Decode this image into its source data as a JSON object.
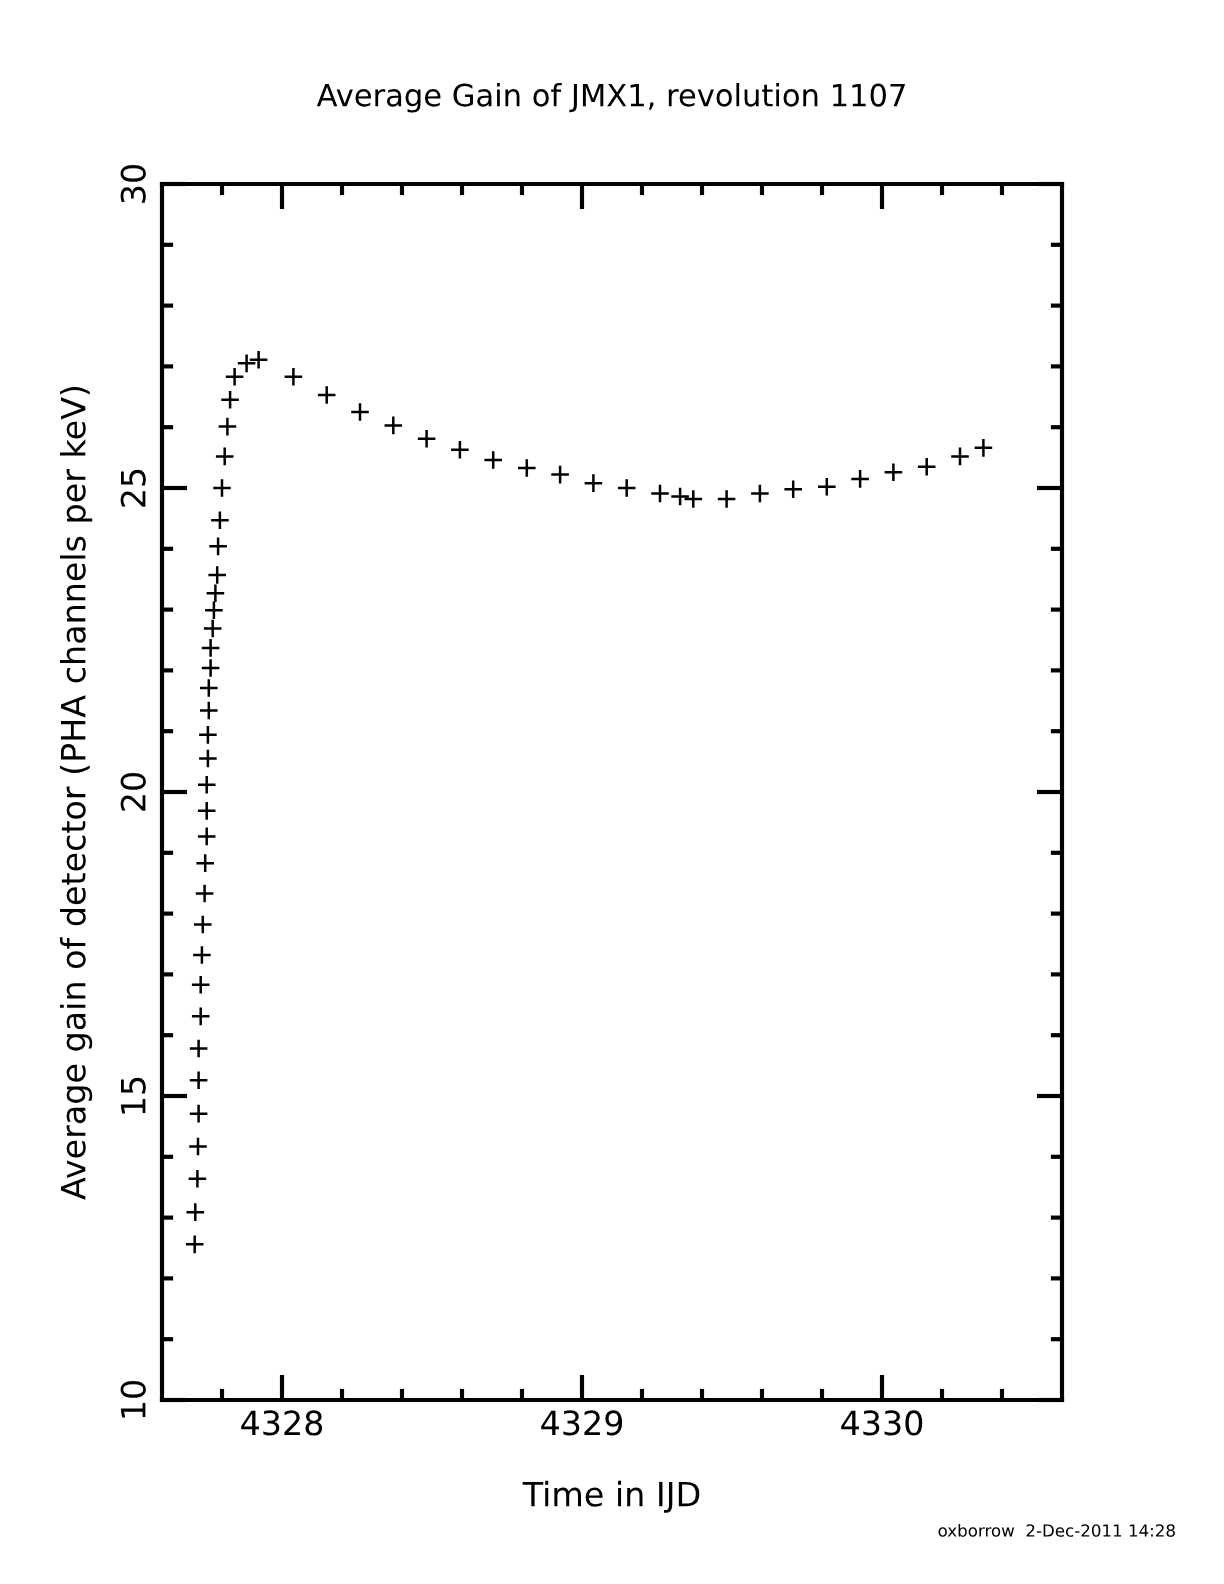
{
  "chart_data": {
    "type": "scatter",
    "title": "Average Gain of JMX1, revolution 1107",
    "xlabel": "Time in IJD",
    "ylabel": "Average gain of detector (PHA channels per keV)",
    "annotations": [
      "oxborrow  2-Dec-2011 14:28"
    ],
    "marker": "cross",
    "grid": false,
    "xlim": [
      4327.6,
      4330.6
    ],
    "ylim": [
      10,
      30
    ],
    "xticks": [
      {
        "value": 4327.8,
        "label": null
      },
      4328,
      {
        "value": 4328.2,
        "label": null
      },
      {
        "value": 4328.4,
        "label": null
      },
      {
        "value": 4328.6,
        "label": null
      },
      {
        "value": 4328.8,
        "label": null
      },
      4329,
      {
        "value": 4329.2,
        "label": null
      },
      {
        "value": 4329.4,
        "label": null
      },
      {
        "value": 4329.6,
        "label": null
      },
      {
        "value": 4329.8,
        "label": null
      },
      4330,
      {
        "value": 4330.2,
        "label": null
      },
      {
        "value": 4330.4,
        "label": null
      }
    ],
    "yticks": [
      10,
      {
        "value": 11,
        "label": null
      },
      {
        "value": 12,
        "label": null
      },
      {
        "value": 13,
        "label": null
      },
      {
        "value": 14,
        "label": null
      },
      15,
      {
        "value": 16,
        "label": null
      },
      {
        "value": 17,
        "label": null
      },
      {
        "value": 18,
        "label": null
      },
      {
        "value": 19,
        "label": null
      },
      20,
      {
        "value": 21,
        "label": null
      },
      {
        "value": 22,
        "label": null
      },
      {
        "value": 23,
        "label": null
      },
      {
        "value": 24,
        "label": null
      },
      25,
      {
        "value": 26,
        "label": null
      },
      {
        "value": 27,
        "label": null
      },
      {
        "value": 28,
        "label": null
      },
      {
        "value": 29,
        "label": null
      },
      30
    ],
    "series": [
      {
        "color": "#000000",
        "x": [
          4327.709,
          4327.711,
          4327.718,
          4327.72,
          4327.722,
          4327.722,
          4327.722,
          4327.729,
          4327.729,
          4327.733,
          4327.736,
          4327.742,
          4327.744,
          4327.749,
          4327.749,
          4327.749,
          4327.753,
          4327.753,
          4327.756,
          4327.756,
          4327.762,
          4327.762,
          4327.769,
          4327.773,
          4327.778,
          4327.784,
          4327.787,
          4327.793,
          4327.8,
          4327.809,
          4327.818,
          4327.827,
          4327.842,
          4327.882,
          4327.922,
          4328.038,
          4328.149,
          4328.26,
          4328.371,
          4328.482,
          4328.593,
          4328.704,
          4328.816,
          4328.927,
          4329.038,
          4329.149,
          4329.26,
          4329.327,
          4329.371,
          4329.482,
          4329.593,
          4329.704,
          4329.816,
          4329.927,
          4330.038,
          4330.149,
          4330.26,
          4330.338
        ],
        "values": [
          12.56,
          13.09,
          13.64,
          14.17,
          14.71,
          15.26,
          15.78,
          16.31,
          16.83,
          17.32,
          17.82,
          18.33,
          18.83,
          19.27,
          19.69,
          20.12,
          20.55,
          20.94,
          21.34,
          21.71,
          22.04,
          22.37,
          22.69,
          22.99,
          23.27,
          23.57,
          24.04,
          24.47,
          25.0,
          25.52,
          26.01,
          26.45,
          26.83,
          27.05,
          27.11,
          26.83,
          26.53,
          26.25,
          26.03,
          25.81,
          25.63,
          25.46,
          25.33,
          25.22,
          25.08,
          25.0,
          24.91,
          24.86,
          24.82,
          24.82,
          24.91,
          24.98,
          25.02,
          25.15,
          25.26,
          25.35,
          25.52,
          25.66
        ]
      }
    ]
  }
}
